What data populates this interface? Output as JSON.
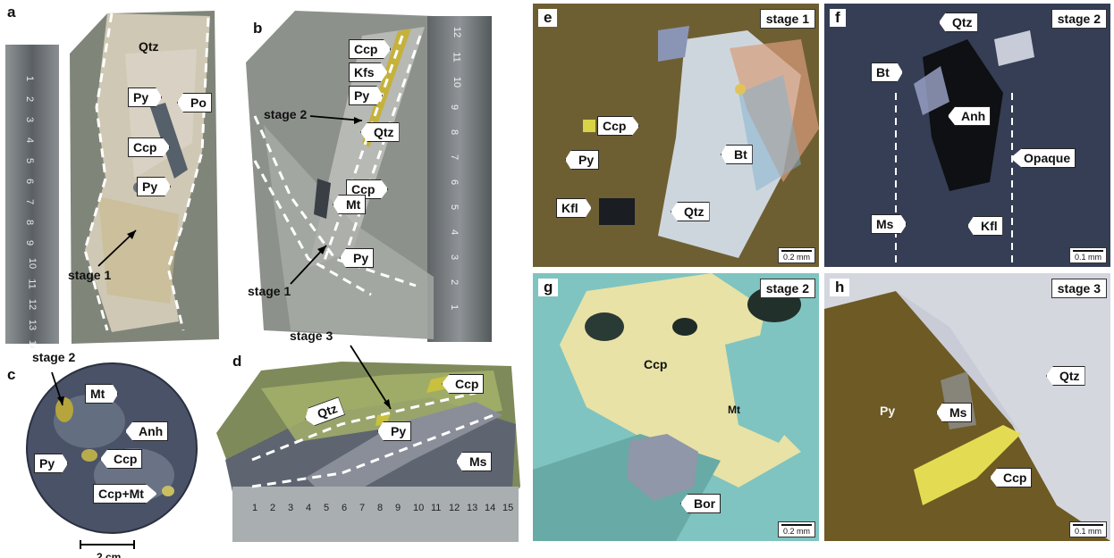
{
  "panels": {
    "a": {
      "label": "a",
      "labels": [
        "Qtz",
        "Py",
        "Po",
        "Ccp",
        "Py"
      ],
      "stage": "stage 1",
      "ruler_ticks": [
        "1",
        "2",
        "3",
        "4",
        "5",
        "6",
        "7",
        "8",
        "9",
        "10",
        "11",
        "12",
        "13",
        "14"
      ]
    },
    "b": {
      "label": "b",
      "labels": [
        "Ccp",
        "Kfs",
        "Py",
        "Qtz",
        "Ccp",
        "Mt",
        "Py"
      ],
      "stage_top": "stage 2",
      "stage_bottom": "stage 1",
      "ruler_ticks": [
        "12",
        "11",
        "10",
        "9",
        "8",
        "7",
        "6",
        "5",
        "4",
        "3",
        "2",
        "1"
      ]
    },
    "c": {
      "label": "c",
      "stage": "stage 2",
      "labels": [
        "Mt",
        "Anh",
        "Py",
        "Ccp",
        "Ccp+Mt"
      ],
      "scale": "2 cm"
    },
    "d": {
      "label": "d",
      "stage": "stage 3",
      "labels": [
        "Qtz",
        "Py",
        "Ccp",
        "Ms"
      ],
      "ruler_ticks": [
        "1",
        "2",
        "3",
        "4",
        "5",
        "6",
        "7",
        "8",
        "9",
        "10",
        "11",
        "12",
        "13",
        "14",
        "15"
      ]
    },
    "e": {
      "label": "e",
      "stage": "stage 1",
      "labels": [
        "Ccp",
        "Py",
        "Bt",
        "Kfl",
        "Qtz"
      ],
      "scale": "0.2 mm"
    },
    "f": {
      "label": "f",
      "stage": "stage 2",
      "labels": [
        "Qtz",
        "Bt",
        "Anh",
        "Opaque",
        "Ms",
        "Kfl"
      ],
      "scale": "0.1 mm"
    },
    "g": {
      "label": "g",
      "stage": "stage 2",
      "labels": [
        "Ccp",
        "Mt",
        "Bor"
      ],
      "scale": "0.2 mm"
    },
    "h": {
      "label": "h",
      "stage": "stage 3",
      "labels": [
        "Qtz",
        "Py",
        "Ms",
        "Ccp"
      ],
      "scale": "0.1 mm"
    }
  },
  "colors": {
    "rock_gray": "#8a8f86",
    "quartz_vein": "#d9d2bd",
    "chalcopyrite": "#e8e2a0",
    "magnetite_blue": "#7fc4c0",
    "dark_field": "#1c2230",
    "biotite_brown": "#6b5a2a"
  }
}
